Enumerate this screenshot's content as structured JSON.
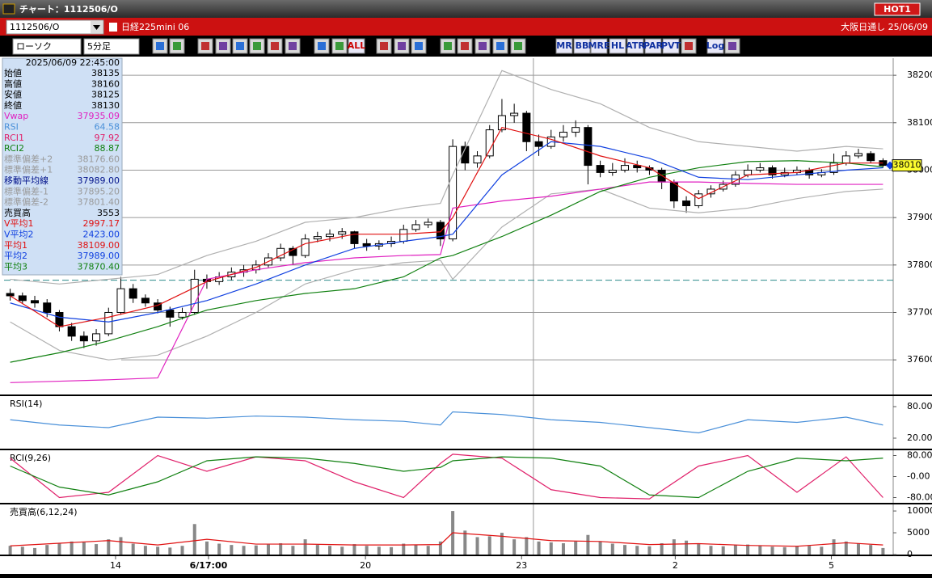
{
  "window": {
    "title": "チャート：1112506/O",
    "badge": "HOT1"
  },
  "header": {
    "symbol": "1112506/O",
    "name": "日経225mini 06",
    "market": "大阪日通し 25/06/09"
  },
  "toolbar": {
    "chart_type": "ローソク",
    "interval": "5分足",
    "buttons": [
      "ALL",
      "MR",
      "BB",
      "MRE",
      "HL",
      "ATR",
      "PAR",
      "PVT",
      "Log"
    ]
  },
  "info_panel": {
    "datetime": "2025/06/09 22:45:00",
    "rows": [
      {
        "label": "始値",
        "value": "38135",
        "color": "#000000"
      },
      {
        "label": "高値",
        "value": "38160",
        "color": "#000000"
      },
      {
        "label": "安値",
        "value": "38125",
        "color": "#000000"
      },
      {
        "label": "終値",
        "value": "38130",
        "color": "#000000"
      },
      {
        "label": "Vwap",
        "value": "37935.09",
        "color": "#e020c0"
      },
      {
        "label": "RSI",
        "value": "64.58",
        "color": "#4a90d9"
      },
      {
        "label": "RCI1",
        "value": "97.92",
        "color": "#e0206a"
      },
      {
        "label": "RCI2",
        "value": "88.87",
        "color": "#108010"
      },
      {
        "label": "標準偏差+2",
        "value": "38176.60",
        "color": "#9a9a9a"
      },
      {
        "label": "標準偏差+1",
        "value": "38082.80",
        "color": "#9a9a9a"
      },
      {
        "label": "移動平均線",
        "value": "37989.00",
        "color": "#00108a"
      },
      {
        "label": "標準偏差-1",
        "value": "37895.20",
        "color": "#9a9a9a"
      },
      {
        "label": "標準偏差-2",
        "value": "37801.40",
        "color": "#9a9a9a"
      },
      {
        "label": "売買高",
        "value": "3553",
        "color": "#000000"
      },
      {
        "label": "V平均1",
        "value": "2997.17",
        "color": "#e01010"
      },
      {
        "label": "V平均2",
        "value": "2423.00",
        "color": "#1040e0"
      },
      {
        "label": "平均1",
        "value": "38109.00",
        "color": "#e01010"
      },
      {
        "label": "平均2",
        "value": "37989.00",
        "color": "#1040e0"
      },
      {
        "label": "平均3",
        "value": "37870.40",
        "color": "#108010"
      }
    ]
  },
  "chart_data": [
    {
      "type": "candlestick",
      "xlim": [
        -0.5,
        71.5
      ],
      "ylim": [
        37527,
        38236
      ],
      "yticks": [
        37600,
        37700,
        37800,
        37900,
        38000,
        38100,
        38200
      ],
      "grid": true,
      "crosshair_x": 42.56,
      "hline": 37768,
      "last_price": 38010,
      "ohlc": [
        [
          37740,
          37750,
          37725,
          37735
        ],
        [
          37735,
          37742,
          37718,
          37725
        ],
        [
          37725,
          37735,
          37710,
          37720
        ],
        [
          37720,
          37728,
          37690,
          37700
        ],
        [
          37700,
          37705,
          37660,
          37670
        ],
        [
          37670,
          37678,
          37640,
          37650
        ],
        [
          37650,
          37660,
          37625,
          37640
        ],
        [
          37640,
          37665,
          37630,
          37655
        ],
        [
          37655,
          37710,
          37650,
          37700
        ],
        [
          37700,
          37775,
          37695,
          37750
        ],
        [
          37750,
          37760,
          37720,
          37730
        ],
        [
          37730,
          37738,
          37712,
          37720
        ],
        [
          37720,
          37728,
          37698,
          37705
        ],
        [
          37705,
          37712,
          37670,
          37690
        ],
        [
          37690,
          37710,
          37685,
          37700
        ],
        [
          37700,
          37790,
          37695,
          37770
        ],
        [
          37770,
          37780,
          37750,
          37765
        ],
        [
          37765,
          37785,
          37758,
          37775
        ],
        [
          37775,
          37795,
          37768,
          37785
        ],
        [
          37785,
          37800,
          37775,
          37790
        ],
        [
          37790,
          37810,
          37782,
          37800
        ],
        [
          37800,
          37825,
          37795,
          37815
        ],
        [
          37815,
          37845,
          37808,
          37835
        ],
        [
          37835,
          37840,
          37800,
          37820
        ],
        [
          37820,
          37865,
          37815,
          37855
        ],
        [
          37855,
          37870,
          37848,
          37860
        ],
        [
          37860,
          37875,
          37850,
          37865
        ],
        [
          37865,
          37878,
          37855,
          37870
        ],
        [
          37870,
          37872,
          37835,
          37845
        ],
        [
          37845,
          37855,
          37830,
          37840
        ],
        [
          37840,
          37852,
          37832,
          37845
        ],
        [
          37845,
          37860,
          37838,
          37850
        ],
        [
          37850,
          37885,
          37845,
          37875
        ],
        [
          37875,
          37895,
          37870,
          37885
        ],
        [
          37885,
          37898,
          37878,
          37890
        ],
        [
          37890,
          37895,
          37840,
          37855
        ],
        [
          37855,
          38065,
          37850,
          38050
        ],
        [
          38050,
          38060,
          38000,
          38015
        ],
        [
          38015,
          38040,
          38005,
          38030
        ],
        [
          38030,
          38095,
          38025,
          38085
        ],
        [
          38085,
          38150,
          38080,
          38115
        ],
        [
          38115,
          38140,
          38100,
          38120
        ],
        [
          38120,
          38125,
          38040,
          38060
        ],
        [
          38060,
          38075,
          38030,
          38050
        ],
        [
          38050,
          38085,
          38045,
          38070
        ],
        [
          38070,
          38095,
          38060,
          38080
        ],
        [
          38080,
          38105,
          38070,
          38090
        ],
        [
          38090,
          38095,
          37970,
          38010
        ],
        [
          38010,
          38020,
          37985,
          37995
        ],
        [
          37995,
          38015,
          37988,
          38000
        ],
        [
          38000,
          38025,
          37995,
          38010
        ],
        [
          38010,
          38020,
          37995,
          38005
        ],
        [
          38005,
          38010,
          37990,
          38000
        ],
        [
          38000,
          38005,
          37960,
          37975
        ],
        [
          37975,
          37980,
          37920,
          37935
        ],
        [
          37935,
          37945,
          37910,
          37925
        ],
        [
          37925,
          37958,
          37920,
          37950
        ],
        [
          37950,
          37968,
          37942,
          37960
        ],
        [
          37960,
          37978,
          37955,
          37970
        ],
        [
          37970,
          37998,
          37965,
          37990
        ],
        [
          37990,
          38012,
          37985,
          38000
        ],
        [
          38000,
          38015,
          37995,
          38005
        ],
        [
          38005,
          38010,
          37982,
          37990
        ],
        [
          37990,
          38005,
          37985,
          37995
        ],
        [
          37995,
          38008,
          37990,
          38000
        ],
        [
          38000,
          38005,
          37982,
          37990
        ],
        [
          37990,
          38002,
          37985,
          37995
        ],
        [
          37995,
          38035,
          37990,
          38015
        ],
        [
          38015,
          38040,
          38010,
          38030
        ],
        [
          38030,
          38045,
          38025,
          38035
        ],
        [
          38035,
          38040,
          38015,
          38020
        ],
        [
          38020,
          38025,
          38005,
          38010
        ]
      ],
      "x": [
        0,
        4,
        8,
        12,
        16,
        20,
        24,
        28,
        32,
        35,
        36,
        40,
        44,
        48,
        52,
        56,
        60,
        64,
        68,
        71
      ],
      "series": [
        {
          "color": "#b0b0b0",
          "values": [
            37770,
            37760,
            37770,
            37780,
            37820,
            37850,
            37890,
            37900,
            37920,
            37930,
            37990,
            38210,
            38170,
            38140,
            38090,
            38060,
            38050,
            38040,
            38050,
            38045
          ]
        },
        {
          "color": "#b0b0b0",
          "values": [
            37680,
            37620,
            37600,
            37610,
            37650,
            37700,
            37760,
            37790,
            37805,
            37810,
            37770,
            37880,
            37950,
            37960,
            37920,
            37910,
            37920,
            37940,
            37955,
            37960
          ]
        },
        {
          "color": "#e020c0",
          "values": [
            37552,
            37555,
            37558,
            37562,
            37770,
            37790,
            37805,
            37815,
            37820,
            37822,
            37920,
            37935,
            37945,
            37960,
            37975,
            37975,
            37972,
            37970,
            37970,
            37970
          ]
        },
        {
          "color": "#108010",
          "values": [
            37595,
            37615,
            37640,
            37670,
            37705,
            37725,
            37740,
            37750,
            37775,
            37815,
            37820,
            37860,
            37905,
            37955,
            37985,
            38005,
            38018,
            38020,
            38015,
            38007
          ]
        },
        {
          "color": "#1040e0",
          "values": [
            37720,
            37690,
            37680,
            37700,
            37725,
            37760,
            37800,
            37835,
            37850,
            37860,
            37865,
            37990,
            38060,
            38050,
            38025,
            37985,
            37980,
            37990,
            38000,
            38005
          ]
        },
        {
          "color": "#e01010",
          "values": [
            37735,
            37670,
            37690,
            37715,
            37765,
            37795,
            37845,
            37865,
            37865,
            37870,
            37900,
            38090,
            38065,
            38030,
            38005,
            37940,
            37990,
            37995,
            38015,
            38015
          ]
        }
      ]
    },
    {
      "type": "line",
      "title": "RSI(14)",
      "ylim": [
        0,
        100
      ],
      "yticks": [
        {
          "value": 20,
          "label": "20.00"
        },
        {
          "value": 80,
          "label": "80.00"
        }
      ],
      "series": [
        {
          "color": "#4a90d9",
          "values": [
            55,
            45,
            40,
            60,
            58,
            62,
            60,
            55,
            52,
            45,
            70,
            65,
            55,
            50,
            40,
            30,
            55,
            50,
            60,
            45
          ]
        }
      ]
    },
    {
      "type": "line",
      "title": "RCI(9,26)",
      "ylim": [
        -100,
        100
      ],
      "yticks": [
        {
          "value": -80,
          "label": "-80.00"
        },
        {
          "value": 0,
          "label": "-0.00"
        },
        {
          "value": 80,
          "label": "80.00"
        }
      ],
      "series": [
        {
          "color": "#e0206a",
          "values": [
            70,
            -80,
            -60,
            80,
            20,
            75,
            60,
            -20,
            -80,
            50,
            85,
            70,
            -50,
            -80,
            -85,
            40,
            80,
            -60,
            75,
            -80
          ]
        },
        {
          "color": "#108010",
          "values": [
            40,
            -40,
            -70,
            -20,
            60,
            75,
            70,
            50,
            20,
            35,
            60,
            75,
            70,
            40,
            -70,
            -80,
            20,
            70,
            60,
            70
          ]
        }
      ]
    },
    {
      "type": "bar",
      "title": "売買高(6,12,24)",
      "ylim": [
        0,
        11500
      ],
      "yticks": [
        0,
        5000,
        10000
      ],
      "color": "#888888",
      "values": [
        2000,
        1800,
        1500,
        2200,
        2500,
        3000,
        2800,
        2400,
        3500,
        4000,
        2500,
        2000,
        1800,
        1600,
        2000,
        7000,
        3000,
        2500,
        2200,
        2000,
        2100,
        2300,
        2600,
        2000,
        3500,
        2200,
        2000,
        1800,
        2400,
        2000,
        1800,
        1700,
        2500,
        2200,
        2000,
        3000,
        10000,
        5500,
        4000,
        4200,
        5000,
        3500,
        4000,
        3000,
        2800,
        2600,
        3000,
        4500,
        3000,
        2500,
        2200,
        2000,
        1900,
        2600,
        3500,
        3200,
        2400,
        2000,
        1900,
        2200,
        2300,
        2000,
        1800,
        1700,
        1900,
        2000,
        1800,
        3500,
        3000,
        2500,
        2200,
        1500
      ],
      "series": [
        {
          "color": "#e01010",
          "values": [
            2000,
            2600,
            3200,
            2200,
            3500,
            2400,
            2400,
            2200,
            2200,
            2300,
            5000,
            4200,
            3200,
            3000,
            2300,
            2500,
            2100,
            1900,
            2700,
            2200
          ]
        }
      ],
      "xticks": [
        {
          "value": 8.57,
          "label": "14"
        },
        {
          "value": 16.13,
          "label": "6/17:00"
        },
        {
          "value": 28.9,
          "label": "20"
        },
        {
          "value": 41.6,
          "label": "23"
        },
        {
          "value": 54.1,
          "label": "2"
        },
        {
          "value": 66.8,
          "label": "5"
        }
      ]
    }
  ]
}
